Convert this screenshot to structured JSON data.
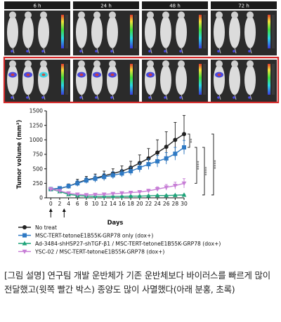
{
  "imaging": {
    "timepoints": [
      "6 h",
      "24 h",
      "48 h",
      "72 h"
    ],
    "highlight_color": "#d42a2a"
  },
  "chart_data": {
    "type": "line",
    "ylabel": "Tumor volume (mm³)",
    "xlabel": "Days",
    "ylim": [
      0,
      1500
    ],
    "yticks": [
      0,
      250,
      500,
      750,
      1000,
      1250,
      1500
    ],
    "xlim": [
      -1,
      30
    ],
    "xticks": [
      0,
      2,
      4,
      6,
      8,
      10,
      12,
      14,
      16,
      18,
      20,
      22,
      24,
      26,
      28,
      30
    ],
    "injection_days": [
      0,
      3
    ],
    "significance": [
      "**",
      "****",
      "****",
      "****"
    ],
    "series": [
      {
        "name": "No treat",
        "color": "#222222",
        "marker": "circle",
        "x": [
          0,
          2,
          4,
          6,
          8,
          10,
          12,
          14,
          16,
          18,
          20,
          22,
          24,
          26,
          28,
          30
        ],
        "y": [
          150,
          160,
          200,
          260,
          310,
          340,
          380,
          420,
          460,
          520,
          600,
          680,
          780,
          880,
          1000,
          1100
        ],
        "err": [
          15,
          20,
          40,
          60,
          60,
          70,
          80,
          80,
          90,
          110,
          140,
          170,
          220,
          260,
          300,
          320
        ]
      },
      {
        "name": "MSC-TERT-tetoneE1B55K-GRP78 only (dox+)",
        "color": "#2e79c4",
        "marker": "square",
        "x": [
          0,
          2,
          4,
          6,
          8,
          10,
          12,
          14,
          16,
          18,
          20,
          22,
          24,
          26,
          28,
          30
        ],
        "y": [
          150,
          165,
          200,
          250,
          300,
          330,
          360,
          390,
          420,
          460,
          520,
          580,
          630,
          680,
          760,
          870
        ],
        "err": [
          15,
          20,
          35,
          50,
          50,
          60,
          60,
          60,
          60,
          70,
          80,
          90,
          100,
          100,
          110,
          120
        ]
      },
      {
        "name": "Ad-3484-shHSP27-shTGF-β1 / MSC-TERT-tetoneE1B55K-GRP78 (dox+)",
        "color": "#1fa37a",
        "marker": "triangle",
        "x": [
          0,
          2,
          4,
          6,
          8,
          10,
          12,
          14,
          16,
          18,
          20,
          22,
          24,
          26,
          28,
          30
        ],
        "y": [
          150,
          110,
          60,
          40,
          30,
          25,
          25,
          25,
          25,
          30,
          30,
          35,
          40,
          40,
          45,
          50
        ],
        "err": [
          15,
          15,
          15,
          10,
          10,
          10,
          10,
          10,
          10,
          10,
          10,
          10,
          10,
          10,
          10,
          10
        ]
      },
      {
        "name": "YSC-02 / MSC-TERT-tetoneE1B55K-GRP78 (dox+)",
        "color": "#c77ed6",
        "marker": "triangle-down",
        "x": [
          0,
          2,
          4,
          6,
          8,
          10,
          12,
          14,
          16,
          18,
          20,
          22,
          24,
          26,
          28,
          30
        ],
        "y": [
          150,
          120,
          80,
          60,
          50,
          55,
          60,
          70,
          80,
          90,
          100,
          120,
          150,
          180,
          210,
          250
        ],
        "err": [
          15,
          15,
          15,
          10,
          10,
          10,
          15,
          15,
          20,
          20,
          25,
          30,
          40,
          50,
          60,
          80
        ]
      }
    ]
  },
  "caption": "[그림 설명] 연구팀 개발 운반체가 기존 운반체보다 바이러스를 빠르게 많이 전달했고(윗쪽 빨간 박스) 종양도 많이 사멸했다(아래 분홍, 초록)"
}
